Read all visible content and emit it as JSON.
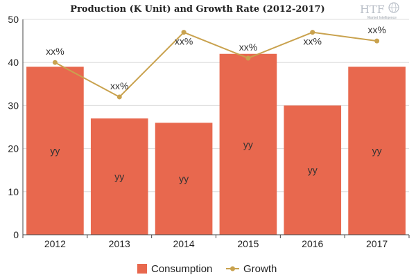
{
  "chart_data": {
    "type": "bar",
    "title": "Production (K Unit) and Growth Rate (2012-2017)",
    "categories": [
      "2012",
      "2013",
      "2014",
      "2015",
      "2016",
      "2017"
    ],
    "ylim": [
      0,
      50
    ],
    "yticks": [
      "0",
      "10",
      "20",
      "30",
      "40",
      "50"
    ],
    "grid": true,
    "legend_position": "bottom",
    "series": [
      {
        "name": "Consumption",
        "type": "bar",
        "color": "#e8684e",
        "values": [
          39,
          27,
          26,
          42,
          30,
          39
        ],
        "labels": [
          "yy",
          "yy",
          "yy",
          "yy",
          "yy",
          "yy"
        ]
      },
      {
        "name": "Growth",
        "type": "line",
        "color": "#c9a24e",
        "values": [
          40,
          32,
          47,
          41,
          47,
          45
        ],
        "labels": [
          "xx%",
          "xx%",
          "xx%",
          "xx%",
          "xx%",
          "xx%"
        ]
      }
    ]
  },
  "logo": {
    "mark": "HTF",
    "subtitle": "Market Intelligence",
    "icon": "globe-icon"
  }
}
